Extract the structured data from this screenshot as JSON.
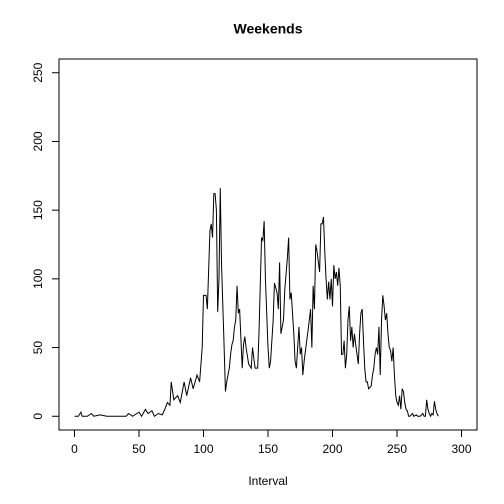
{
  "chart_data": {
    "type": "line",
    "title": "Weekends",
    "x_label": "Interval",
    "x": [
      0,
      3,
      5,
      6,
      10,
      13,
      15,
      20,
      25,
      30,
      40,
      42,
      45,
      50,
      52,
      55,
      57,
      60,
      62,
      65,
      68,
      70,
      72,
      74,
      75,
      77,
      80,
      82,
      85,
      87,
      90,
      92,
      95,
      97,
      99,
      100,
      102,
      103,
      105,
      106,
      107,
      108,
      109,
      110,
      111,
      112,
      113,
      114,
      116,
      117,
      118,
      120,
      121,
      122,
      123,
      124,
      125,
      126,
      127,
      128,
      130,
      131,
      132,
      133,
      135,
      137,
      138,
      140,
      142,
      143,
      144,
      145,
      146,
      147,
      148,
      149,
      150,
      151,
      152,
      154,
      155,
      157,
      158,
      159,
      160,
      162,
      163,
      165,
      166,
      167,
      168,
      169,
      170,
      171,
      172,
      173,
      174,
      175,
      176,
      177,
      178,
      180,
      181,
      182,
      183,
      184,
      185,
      186,
      187,
      188,
      190,
      191,
      192,
      193,
      194,
      195,
      196,
      197,
      198,
      199,
      200,
      201,
      202,
      203,
      204,
      205,
      206,
      207,
      208,
      209,
      210,
      211,
      212,
      213,
      214,
      215,
      216,
      217,
      218,
      219,
      220,
      221,
      222,
      223,
      224,
      225,
      226,
      227,
      228,
      230,
      231,
      232,
      233,
      234,
      235,
      236,
      237,
      238,
      239,
      240,
      241,
      242,
      243,
      244,
      245,
      246,
      247,
      248,
      249,
      250,
      251,
      252,
      253,
      254,
      255,
      256,
      257,
      258,
      259,
      260,
      262,
      263,
      265,
      266,
      268,
      270,
      271,
      272,
      273,
      274,
      275,
      276,
      277,
      278,
      279,
      280,
      281,
      282
    ],
    "series": [
      {
        "name": "Weekends",
        "color": "#000000",
        "values": [
          0,
          0,
          3,
          0,
          0,
          2,
          0,
          1,
          0,
          0,
          0,
          2,
          0,
          3,
          0,
          5,
          2,
          4,
          0,
          2,
          1,
          5,
          10,
          8,
          25,
          12,
          15,
          10,
          25,
          15,
          28,
          20,
          30,
          25,
          50,
          88,
          88,
          78,
          135,
          140,
          130,
          162,
          162,
          150,
          76,
          100,
          166,
          110,
          50,
          18,
          25,
          35,
          45,
          52,
          55,
          65,
          70,
          95,
          75,
          78,
          35,
          52,
          58,
          50,
          38,
          35,
          50,
          35,
          35,
          60,
          95,
          130,
          128,
          142,
          100,
          75,
          50,
          35,
          40,
          70,
          97,
          90,
          78,
          112,
          60,
          70,
          92,
          115,
          130,
          85,
          90,
          75,
          60,
          40,
          35,
          50,
          65,
          45,
          50,
          30,
          40,
          55,
          62,
          70,
          78,
          50,
          95,
          78,
          125,
          120,
          105,
          140,
          140,
          145,
          120,
          100,
          85,
          98,
          85,
          100,
          80,
          110,
          100,
          105,
          95,
          108,
          95,
          45,
          45,
          55,
          35,
          45,
          70,
          80,
          55,
          65,
          50,
          60,
          52,
          45,
          38,
          60,
          75,
          78,
          55,
          35,
          25,
          25,
          20,
          22,
          30,
          35,
          45,
          50,
          45,
          65,
          30,
          70,
          88,
          80,
          70,
          75,
          60,
          50,
          48,
          40,
          50,
          30,
          15,
          10,
          8,
          15,
          5,
          20,
          18,
          10,
          5,
          4,
          0,
          0,
          2,
          0,
          1,
          0,
          0,
          2,
          0,
          0,
          12,
          5,
          2,
          0,
          2,
          1,
          11,
          5,
          2,
          0
        ]
      }
    ],
    "xlim": [
      -12,
      312
    ],
    "ylim": [
      -10,
      260
    ],
    "xticks": [
      0,
      50,
      100,
      150,
      200,
      250,
      300
    ],
    "yticks": [
      0,
      50,
      100,
      150,
      200,
      250
    ]
  }
}
